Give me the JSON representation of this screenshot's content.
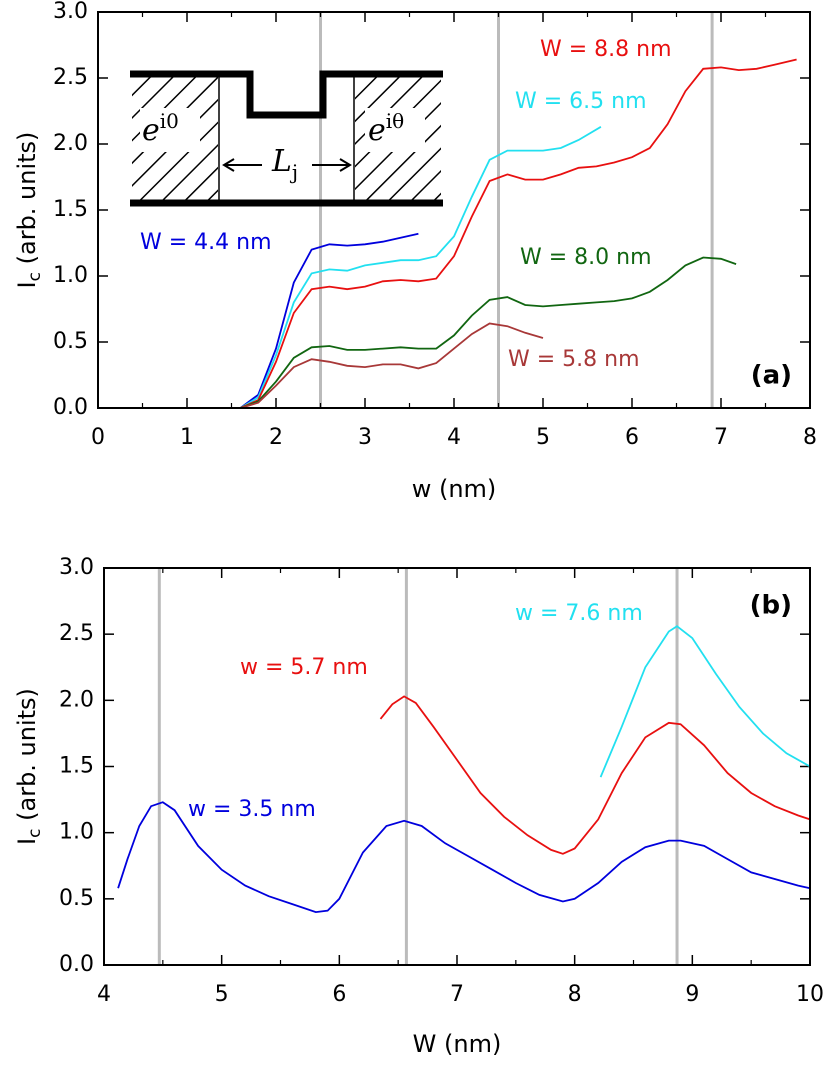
{
  "chart_data": [
    {
      "type": "line",
      "panel_label": "(a)",
      "xlabel": "w (nm)",
      "ylabel": [
        "I",
        "c",
        " (arb. units)"
      ],
      "xlim": [
        0,
        8
      ],
      "xticks": [
        0,
        1,
        2,
        3,
        4,
        5,
        6,
        7,
        8
      ],
      "ylim": [
        0,
        3
      ],
      "yticks": [
        {
          "value": 0,
          "label": "0.0"
        },
        0.5,
        {
          "value": 1,
          "label": "1.0"
        },
        1.5,
        {
          "value": 2,
          "label": "2.0"
        },
        2.5,
        {
          "value": 3,
          "label": "3.0"
        }
      ],
      "vlines": [
        2.5,
        4.5,
        6.9
      ],
      "inset": {
        "left": [
          "e",
          "i0"
        ],
        "middle": [
          "L",
          "j"
        ],
        "right": [
          "e",
          "iθ"
        ]
      },
      "series": [
        {
          "name": "W = 4.4 nm",
          "color": "#0000dd",
          "x": [
            1.6,
            1.8,
            2.0,
            2.2,
            2.4,
            2.6,
            2.8,
            3.0,
            3.2,
            3.4,
            3.6
          ],
          "values": [
            0,
            0.1,
            0.45,
            0.95,
            1.2,
            1.24,
            1.23,
            1.24,
            1.26,
            1.29,
            1.32
          ]
        },
        {
          "name": "W = 6.5 nm",
          "color": "#22e0f0",
          "x": [
            1.6,
            1.8,
            2.0,
            2.2,
            2.4,
            2.6,
            2.8,
            3.0,
            3.2,
            3.4,
            3.6,
            3.8,
            4.0,
            4.2,
            4.4,
            4.6,
            4.8,
            5.0,
            5.2,
            5.4,
            5.65
          ],
          "values": [
            0,
            0.08,
            0.4,
            0.8,
            1.02,
            1.05,
            1.04,
            1.08,
            1.1,
            1.12,
            1.12,
            1.15,
            1.3,
            1.6,
            1.88,
            1.95,
            1.95,
            1.95,
            1.97,
            2.03,
            2.13
          ]
        },
        {
          "name": "W = 8.8 nm",
          "color": "#e81010",
          "x": [
            1.6,
            1.8,
            2.0,
            2.2,
            2.4,
            2.6,
            2.8,
            3.0,
            3.2,
            3.4,
            3.6,
            3.8,
            4.0,
            4.2,
            4.4,
            4.6,
            4.8,
            5.0,
            5.2,
            5.4,
            5.6,
            5.8,
            6.0,
            6.2,
            6.4,
            6.6,
            6.8,
            7.0,
            7.2,
            7.4,
            7.6,
            7.85
          ],
          "values": [
            0,
            0.06,
            0.35,
            0.72,
            0.9,
            0.92,
            0.9,
            0.92,
            0.96,
            0.97,
            0.96,
            0.98,
            1.15,
            1.45,
            1.72,
            1.77,
            1.73,
            1.73,
            1.77,
            1.82,
            1.83,
            1.86,
            1.9,
            1.97,
            2.15,
            2.4,
            2.57,
            2.58,
            2.56,
            2.57,
            2.6,
            2.64
          ]
        },
        {
          "name": "W = 8.0 nm",
          "color": "#116611",
          "x": [
            1.6,
            1.8,
            2.0,
            2.2,
            2.4,
            2.6,
            2.8,
            3.0,
            3.2,
            3.4,
            3.6,
            3.8,
            4.0,
            4.2,
            4.4,
            4.6,
            4.8,
            5.0,
            5.2,
            5.4,
            5.6,
            5.8,
            6.0,
            6.2,
            6.4,
            6.6,
            6.8,
            7.0,
            7.17
          ],
          "values": [
            0,
            0.05,
            0.2,
            0.38,
            0.46,
            0.47,
            0.44,
            0.44,
            0.45,
            0.46,
            0.45,
            0.45,
            0.55,
            0.7,
            0.82,
            0.84,
            0.78,
            0.77,
            0.78,
            0.79,
            0.8,
            0.81,
            0.83,
            0.88,
            0.97,
            1.08,
            1.14,
            1.13,
            1.09
          ]
        },
        {
          "name": "W = 5.8 nm",
          "color": "#a83838",
          "x": [
            1.6,
            1.8,
            2.0,
            2.2,
            2.4,
            2.6,
            2.8,
            3.0,
            3.2,
            3.4,
            3.6,
            3.8,
            4.0,
            4.2,
            4.4,
            4.6,
            4.8,
            5.0
          ],
          "values": [
            0,
            0.04,
            0.17,
            0.31,
            0.37,
            0.35,
            0.32,
            0.31,
            0.33,
            0.33,
            0.3,
            0.34,
            0.45,
            0.56,
            0.64,
            0.62,
            0.57,
            0.53
          ]
        }
      ]
    },
    {
      "type": "line",
      "panel_label": "(b)",
      "xlabel": "W (nm)",
      "ylabel": [
        "I",
        "c",
        " (arb. units)"
      ],
      "xlim": [
        4,
        10
      ],
      "xticks": [
        4,
        5,
        6,
        7,
        8,
        9,
        10
      ],
      "ylim": [
        0,
        3
      ],
      "yticks": [
        {
          "value": 0,
          "label": "0.0"
        },
        0.5,
        {
          "value": 1,
          "label": "1.0"
        },
        1.5,
        {
          "value": 2,
          "label": "2.0"
        },
        2.5,
        {
          "value": 3,
          "label": "3.0"
        }
      ],
      "vlines": [
        4.47,
        6.57,
        8.87
      ],
      "series": [
        {
          "name": "w = 3.5 nm",
          "color": "#0000dd",
          "x": [
            4.12,
            4.2,
            4.3,
            4.4,
            4.5,
            4.6,
            4.8,
            5.0,
            5.2,
            5.4,
            5.6,
            5.8,
            5.9,
            6.0,
            6.2,
            6.4,
            6.55,
            6.7,
            6.9,
            7.1,
            7.3,
            7.5,
            7.7,
            7.9,
            8.0,
            8.2,
            8.4,
            8.6,
            8.8,
            8.9,
            9.1,
            9.3,
            9.5,
            9.7,
            9.9,
            10
          ],
          "values": [
            0.58,
            0.8,
            1.05,
            1.2,
            1.23,
            1.17,
            0.9,
            0.72,
            0.6,
            0.52,
            0.46,
            0.4,
            0.41,
            0.5,
            0.85,
            1.05,
            1.09,
            1.05,
            0.92,
            0.82,
            0.72,
            0.62,
            0.53,
            0.48,
            0.5,
            0.62,
            0.78,
            0.89,
            0.94,
            0.94,
            0.9,
            0.8,
            0.7,
            0.65,
            0.6,
            0.58
          ]
        },
        {
          "name": "w = 5.7 nm",
          "color": "#e81010",
          "x": [
            6.35,
            6.45,
            6.55,
            6.65,
            6.8,
            7.0,
            7.2,
            7.4,
            7.6,
            7.8,
            7.9,
            8.0,
            8.2,
            8.4,
            8.6,
            8.8,
            8.9,
            9.1,
            9.3,
            9.5,
            9.7,
            9.9,
            10
          ],
          "values": [
            1.86,
            1.97,
            2.03,
            1.98,
            1.8,
            1.55,
            1.3,
            1.12,
            0.98,
            0.87,
            0.84,
            0.88,
            1.1,
            1.45,
            1.72,
            1.83,
            1.82,
            1.66,
            1.45,
            1.3,
            1.2,
            1.13,
            1.1
          ]
        },
        {
          "name": "w = 7.6 nm",
          "color": "#22e0f0",
          "x": [
            8.22,
            8.4,
            8.6,
            8.8,
            8.87,
            9.0,
            9.2,
            9.4,
            9.6,
            9.8,
            10
          ],
          "values": [
            1.42,
            1.8,
            2.25,
            2.52,
            2.56,
            2.47,
            2.2,
            1.95,
            1.75,
            1.6,
            1.5
          ]
        }
      ]
    }
  ]
}
